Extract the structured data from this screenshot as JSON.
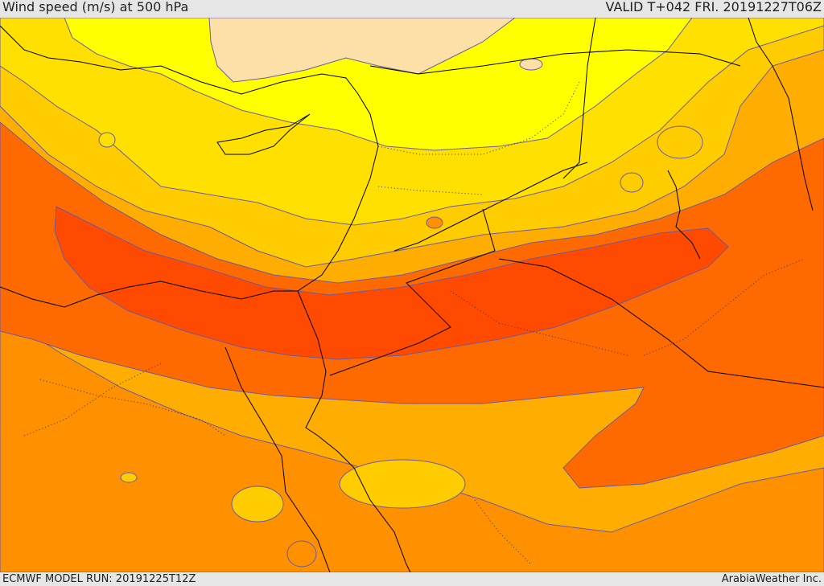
{
  "header": {
    "title": "Wind speed (m/s) at 500 hPa",
    "valid": "VALID T+042 FRI. 20191227T06Z"
  },
  "footer": {
    "model_run": "ECMWF MODEL RUN: 20191225T12Z",
    "credit": "ArabiaWeather Inc."
  },
  "map": {
    "field": "wind speed at 500 hPa",
    "palette": {
      "lightest": "#fde0a8",
      "light_yellow": "#ffff00",
      "yellow": "#ffe000",
      "gold": "#ffcc00",
      "orange_light": "#ffad00",
      "orange": "#ff9000",
      "orange_dark": "#ff6a00",
      "red_orange": "#ff4a00",
      "red": "#ff3800"
    },
    "contour_color": "#6a5aa8",
    "coastline_color": "#000000",
    "border_style": "dotted"
  }
}
